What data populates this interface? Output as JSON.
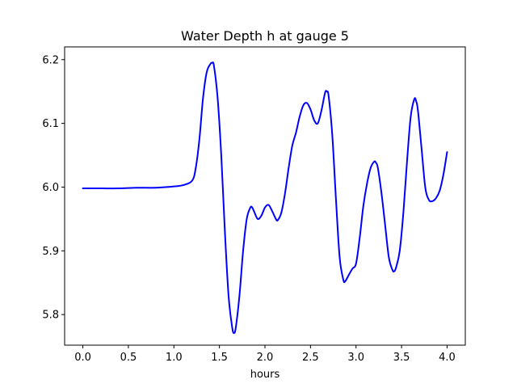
{
  "chart_data": {
    "type": "line",
    "title": "Water Depth h at gauge 5",
    "xlabel": "hours",
    "ylabel": "",
    "xlim": [
      -0.2,
      4.2
    ],
    "ylim": [
      5.752,
      6.22
    ],
    "xticks": [
      0.0,
      0.5,
      1.0,
      1.5,
      2.0,
      2.5,
      3.0,
      3.5,
      4.0
    ],
    "xtick_labels": [
      "0.0",
      "0.5",
      "1.0",
      "1.5",
      "2.0",
      "2.5",
      "3.0",
      "3.5",
      "4.0"
    ],
    "yticks": [
      5.8,
      5.9,
      6.0,
      6.1,
      6.2
    ],
    "ytick_labels": [
      "5.8",
      "5.9",
      "6.0",
      "6.1",
      "6.2"
    ],
    "grid": false,
    "line_color": "#0000ff",
    "series": [
      {
        "x": [
          0.0,
          0.2,
          0.4,
          0.6,
          0.8,
          1.0,
          1.1,
          1.2,
          1.24,
          1.28,
          1.32,
          1.36,
          1.4,
          1.42,
          1.44,
          1.48,
          1.52,
          1.56,
          1.6,
          1.64,
          1.66,
          1.68,
          1.72,
          1.76,
          1.8,
          1.84,
          1.86,
          1.88,
          1.92,
          1.96,
          2.0,
          2.04,
          2.08,
          2.12,
          2.14,
          2.18,
          2.22,
          2.26,
          2.3,
          2.34,
          2.38,
          2.42,
          2.46,
          2.5,
          2.54,
          2.58,
          2.62,
          2.66,
          2.68,
          2.7,
          2.74,
          2.78,
          2.82,
          2.86,
          2.88,
          2.92,
          2.96,
          3.0,
          3.04,
          3.08,
          3.12,
          3.16,
          3.2,
          3.22,
          3.24,
          3.28,
          3.32,
          3.36,
          3.4,
          3.42,
          3.44,
          3.48,
          3.52,
          3.56,
          3.6,
          3.64,
          3.66,
          3.68,
          3.72,
          3.76,
          3.8,
          3.84,
          3.88,
          3.92,
          3.96,
          4.0
        ],
        "y": [
          5.998,
          5.998,
          5.998,
          5.999,
          5.999,
          6.001,
          6.003,
          6.01,
          6.03,
          6.075,
          6.14,
          6.18,
          6.193,
          6.195,
          6.19,
          6.14,
          6.05,
          5.93,
          5.83,
          5.78,
          5.771,
          5.78,
          5.83,
          5.9,
          5.95,
          5.968,
          5.968,
          5.962,
          5.95,
          5.955,
          5.968,
          5.972,
          5.962,
          5.95,
          5.948,
          5.96,
          5.99,
          6.03,
          6.065,
          6.085,
          6.11,
          6.128,
          6.132,
          6.122,
          6.105,
          6.1,
          6.12,
          6.148,
          6.15,
          6.142,
          6.08,
          5.98,
          5.89,
          5.855,
          5.852,
          5.862,
          5.872,
          5.88,
          5.92,
          5.97,
          6.005,
          6.03,
          6.04,
          6.038,
          6.03,
          5.99,
          5.94,
          5.89,
          5.87,
          5.868,
          5.874,
          5.9,
          5.96,
          6.04,
          6.11,
          6.138,
          6.135,
          6.12,
          6.06,
          6.0,
          5.98,
          5.978,
          5.983,
          5.995,
          6.02,
          6.055
        ]
      }
    ]
  }
}
